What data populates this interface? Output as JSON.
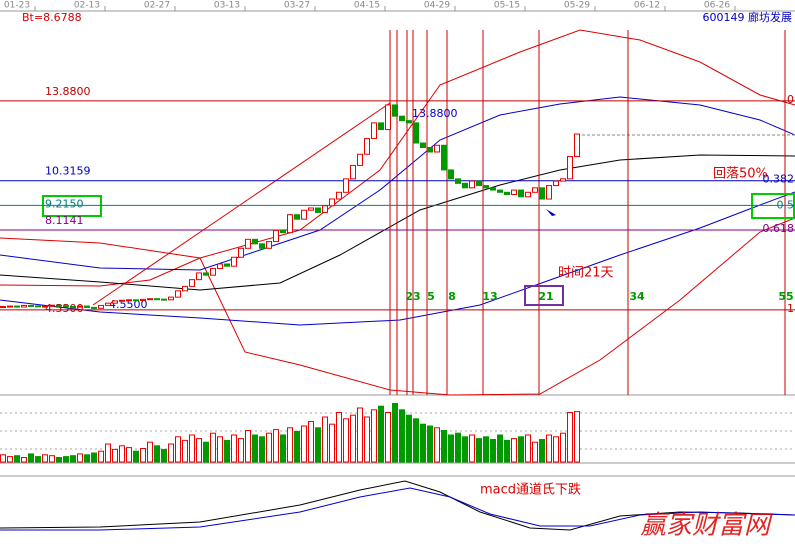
{
  "chart_data": {
    "type": "candlestick",
    "security": "600149 廊坊发展",
    "cursor_label": "Bt=8.6788",
    "dates": [
      "01-23",
      "02-13",
      "02-27",
      "03-13",
      "03-27",
      "04-15",
      "04-29",
      "05-15",
      "05-29",
      "06-12",
      "06-26"
    ],
    "ylim": [
      0.75,
      17.85
    ],
    "open": [
      4.68,
      4.7,
      4.72,
      4.68,
      4.75,
      4.73,
      4.7,
      4.72,
      4.76,
      4.74,
      4.7,
      4.68,
      4.72,
      4.66,
      4.62,
      4.75,
      4.85,
      4.95,
      4.98,
      5.0,
      4.97,
      5.02,
      5.05,
      5.03,
      5.0,
      5.12,
      5.4,
      5.6,
      5.9,
      6.2,
      6.1,
      6.4,
      6.6,
      6.5,
      6.9,
      7.3,
      7.7,
      7.5,
      7.3,
      7.6,
      8.1,
      8.0,
      8.8,
      8.6,
      9.0,
      9.1,
      8.9,
      9.2,
      9.5,
      9.8,
      10.4,
      11.0,
      11.5,
      12.2,
      12.9,
      12.6,
      13.7,
      13.2,
      13.0,
      12.9,
      12.0,
      11.8,
      11.6,
      11.9,
      10.8,
      10.4,
      10.2,
      10.0,
      10.3,
      10.1,
      10.0,
      9.9,
      9.8,
      9.7,
      9.9,
      9.6,
      9.8,
      10.0,
      9.5,
      10.1,
      10.3,
      10.4,
      11.4
    ],
    "close": [
      4.7,
      4.72,
      4.68,
      4.75,
      4.73,
      4.7,
      4.72,
      4.76,
      4.74,
      4.7,
      4.68,
      4.72,
      4.66,
      4.62,
      4.75,
      4.85,
      4.95,
      4.98,
      5.0,
      4.97,
      5.02,
      5.05,
      5.03,
      5.0,
      5.12,
      5.4,
      5.6,
      5.9,
      6.2,
      6.1,
      6.4,
      6.6,
      6.5,
      6.9,
      7.3,
      7.7,
      7.5,
      7.3,
      7.6,
      8.1,
      8.0,
      8.8,
      8.6,
      9.0,
      9.1,
      8.9,
      9.2,
      9.5,
      9.8,
      10.4,
      11.0,
      11.5,
      12.2,
      12.9,
      12.6,
      13.7,
      13.2,
      13.0,
      12.9,
      12.0,
      11.8,
      11.6,
      11.9,
      10.8,
      10.4,
      10.2,
      10.0,
      10.3,
      10.1,
      10.0,
      9.9,
      9.8,
      9.7,
      9.9,
      9.6,
      9.8,
      10.0,
      9.5,
      10.1,
      10.3,
      10.4,
      11.4,
      12.4
    ],
    "volume": [
      8,
      6,
      7,
      5,
      9,
      6,
      8,
      7,
      5,
      6,
      7,
      9,
      8,
      10,
      12,
      20,
      14,
      18,
      16,
      12,
      15,
      22,
      18,
      14,
      20,
      28,
      24,
      30,
      26,
      22,
      32,
      28,
      24,
      30,
      26,
      35,
      30,
      28,
      32,
      36,
      30,
      38,
      34,
      40,
      45,
      38,
      50,
      42,
      55,
      48,
      52,
      60,
      50,
      58,
      62,
      55,
      65,
      58,
      52,
      48,
      42,
      40,
      38,
      35,
      30,
      32,
      28,
      30,
      26,
      28,
      25,
      30,
      24,
      26,
      28,
      30,
      22,
      25,
      30,
      28,
      32,
      55,
      56
    ],
    "levels": [
      {
        "value": 13.88,
        "label": "13.8800",
        "ratio": "0",
        "color": "#c00000"
      },
      {
        "value": 10.3159,
        "label": "10.3159",
        "ratio": "0.382",
        "color": "#0000c0"
      },
      {
        "value": 9.215,
        "label": "9.2150",
        "ratio": "0.5",
        "color": "#008080"
      },
      {
        "value": 8.1141,
        "label": "8.1141",
        "ratio": "0.618",
        "color": "#800080"
      },
      {
        "value": 4.55,
        "label": "4.5500",
        "ratio": "1",
        "color": "#c00000"
      }
    ],
    "peak_label": "13.8800",
    "low_label": "4.5500",
    "time_labels": [
      "23",
      "5",
      "8",
      "13",
      "21",
      "34",
      "55"
    ],
    "annotations": {
      "retrace": "回落50%",
      "time": "时间21天",
      "macd": "macd通道氏下跌"
    },
    "watermark": "赢家财富网"
  }
}
